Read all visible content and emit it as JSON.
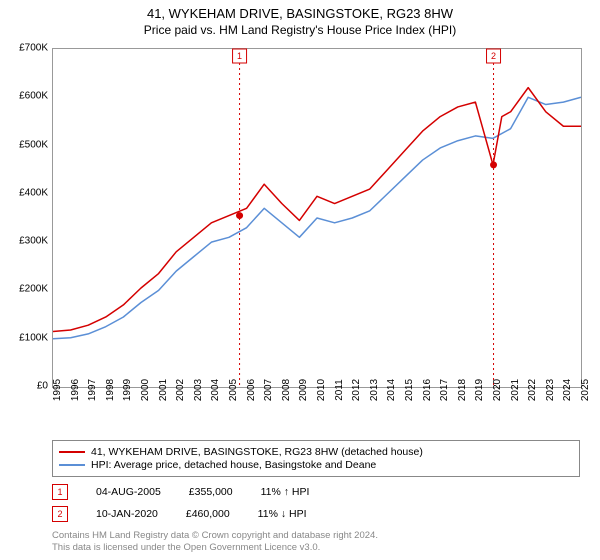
{
  "title": "41, WYKEHAM DRIVE, BASINGSTOKE, RG23 8HW",
  "subtitle": "Price paid vs. HM Land Registry's House Price Index (HPI)",
  "chart": {
    "type": "line",
    "background_color": "#ffffff",
    "border_color": "#999999",
    "ylim": [
      0,
      700000
    ],
    "ytick_step": 100000,
    "yticks_labels": [
      "£0",
      "£100K",
      "£200K",
      "£300K",
      "£400K",
      "£500K",
      "£600K",
      "£700K"
    ],
    "xlim": [
      1995,
      2025
    ],
    "xticks": [
      1995,
      1996,
      1997,
      1998,
      1999,
      2000,
      2001,
      2002,
      2003,
      2004,
      2005,
      2006,
      2007,
      2008,
      2009,
      2010,
      2011,
      2012,
      2013,
      2014,
      2015,
      2016,
      2017,
      2018,
      2019,
      2020,
      2021,
      2022,
      2023,
      2024,
      2025
    ],
    "ytick_fontsize": 10,
    "xtick_fontsize": 10,
    "xtick_rotation": -90,
    "series": [
      {
        "name": "address",
        "label": "41, WYKEHAM DRIVE, BASINGSTOKE, RG23 8HW (detached house)",
        "color": "#d40000",
        "line_width": 1.5,
        "data": [
          [
            1995,
            115000
          ],
          [
            1996,
            118000
          ],
          [
            1997,
            128000
          ],
          [
            1998,
            145000
          ],
          [
            1999,
            170000
          ],
          [
            2000,
            205000
          ],
          [
            2001,
            235000
          ],
          [
            2002,
            280000
          ],
          [
            2003,
            310000
          ],
          [
            2004,
            340000
          ],
          [
            2005,
            355000
          ],
          [
            2006,
            370000
          ],
          [
            2007,
            420000
          ],
          [
            2008,
            380000
          ],
          [
            2009,
            345000
          ],
          [
            2010,
            395000
          ],
          [
            2011,
            380000
          ],
          [
            2012,
            395000
          ],
          [
            2013,
            410000
          ],
          [
            2014,
            450000
          ],
          [
            2015,
            490000
          ],
          [
            2016,
            530000
          ],
          [
            2017,
            560000
          ],
          [
            2018,
            580000
          ],
          [
            2019,
            590000
          ],
          [
            2020,
            460000
          ],
          [
            2020.5,
            560000
          ],
          [
            2021,
            570000
          ],
          [
            2022,
            620000
          ],
          [
            2023,
            570000
          ],
          [
            2024,
            540000
          ],
          [
            2025,
            540000
          ]
        ]
      },
      {
        "name": "hpi",
        "label": "HPI: Average price, detached house, Basingstoke and Deane",
        "color": "#5b8fd6",
        "line_width": 1.5,
        "data": [
          [
            1995,
            100000
          ],
          [
            1996,
            102000
          ],
          [
            1997,
            110000
          ],
          [
            1998,
            125000
          ],
          [
            1999,
            145000
          ],
          [
            2000,
            175000
          ],
          [
            2001,
            200000
          ],
          [
            2002,
            240000
          ],
          [
            2003,
            270000
          ],
          [
            2004,
            300000
          ],
          [
            2005,
            310000
          ],
          [
            2006,
            330000
          ],
          [
            2007,
            370000
          ],
          [
            2008,
            340000
          ],
          [
            2009,
            310000
          ],
          [
            2010,
            350000
          ],
          [
            2011,
            340000
          ],
          [
            2012,
            350000
          ],
          [
            2013,
            365000
          ],
          [
            2014,
            400000
          ],
          [
            2015,
            435000
          ],
          [
            2016,
            470000
          ],
          [
            2017,
            495000
          ],
          [
            2018,
            510000
          ],
          [
            2019,
            520000
          ],
          [
            2020,
            515000
          ],
          [
            2021,
            535000
          ],
          [
            2022,
            600000
          ],
          [
            2023,
            585000
          ],
          [
            2024,
            590000
          ],
          [
            2025,
            600000
          ]
        ]
      }
    ],
    "markers": [
      {
        "id": "1",
        "x": 2005.6,
        "color": "#d40000",
        "point_y": 355000,
        "date": "04-AUG-2005",
        "price": "£355,000",
        "delta": "11% ↑ HPI"
      },
      {
        "id": "2",
        "x": 2020.03,
        "color": "#d40000",
        "point_y": 460000,
        "date": "10-JAN-2020",
        "price": "£460,000",
        "delta": "11% ↓ HPI"
      }
    ]
  },
  "footer": {
    "line1": "Contains HM Land Registry data © Crown copyright and database right 2024.",
    "line2": "This data is licensed under the Open Government Licence v3.0."
  }
}
